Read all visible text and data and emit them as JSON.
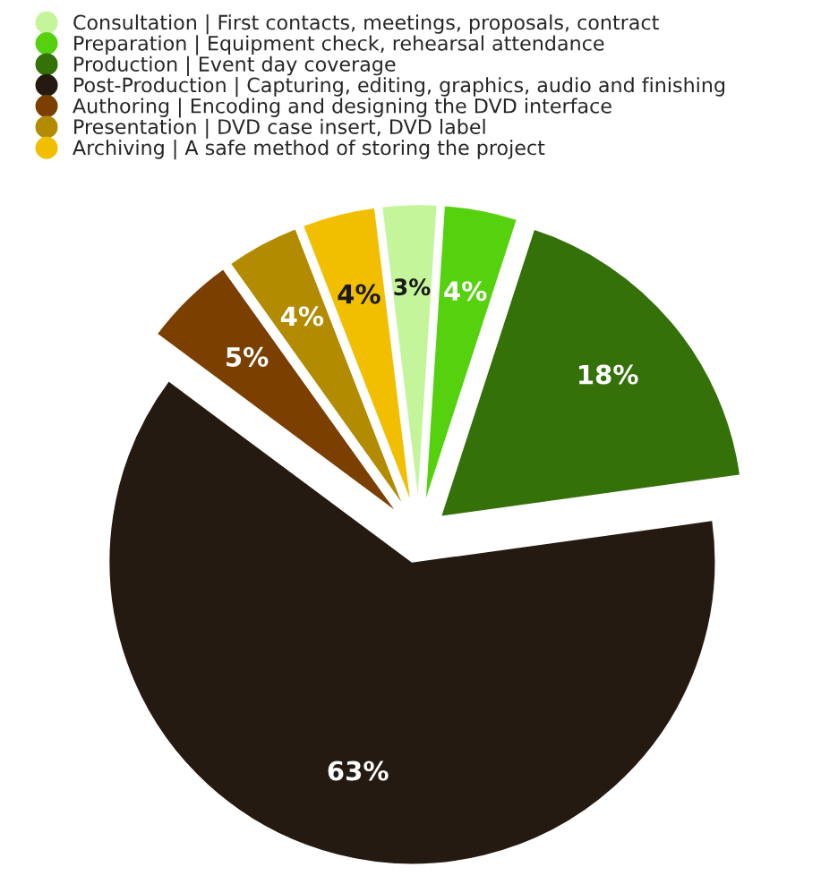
{
  "chart_data": {
    "type": "pie",
    "categories": [
      "Consultation | First contacts, meetings, proposals, contract",
      "Preparation | Equipment check, rehearsal attendance",
      "Production | Event day coverage",
      "Post-Production | Capturing, editing, graphics, audio and finishing",
      "Authoring | Encoding and designing the DVD interface",
      "Presentation | DVD case insert, DVD label",
      "Archiving | A safe method of storing the project"
    ],
    "values": [
      3,
      4,
      18,
      63,
      5,
      4,
      4
    ],
    "value_labels": [
      "3%",
      "4%",
      "18%",
      "63%",
      "5%",
      "4%",
      "4%"
    ],
    "colors": [
      "#c4f59a",
      "#55d10e",
      "#347108",
      "#241a12",
      "#7b3f00",
      "#b38b00",
      "#f2bf00"
    ],
    "legend": "top left"
  }
}
